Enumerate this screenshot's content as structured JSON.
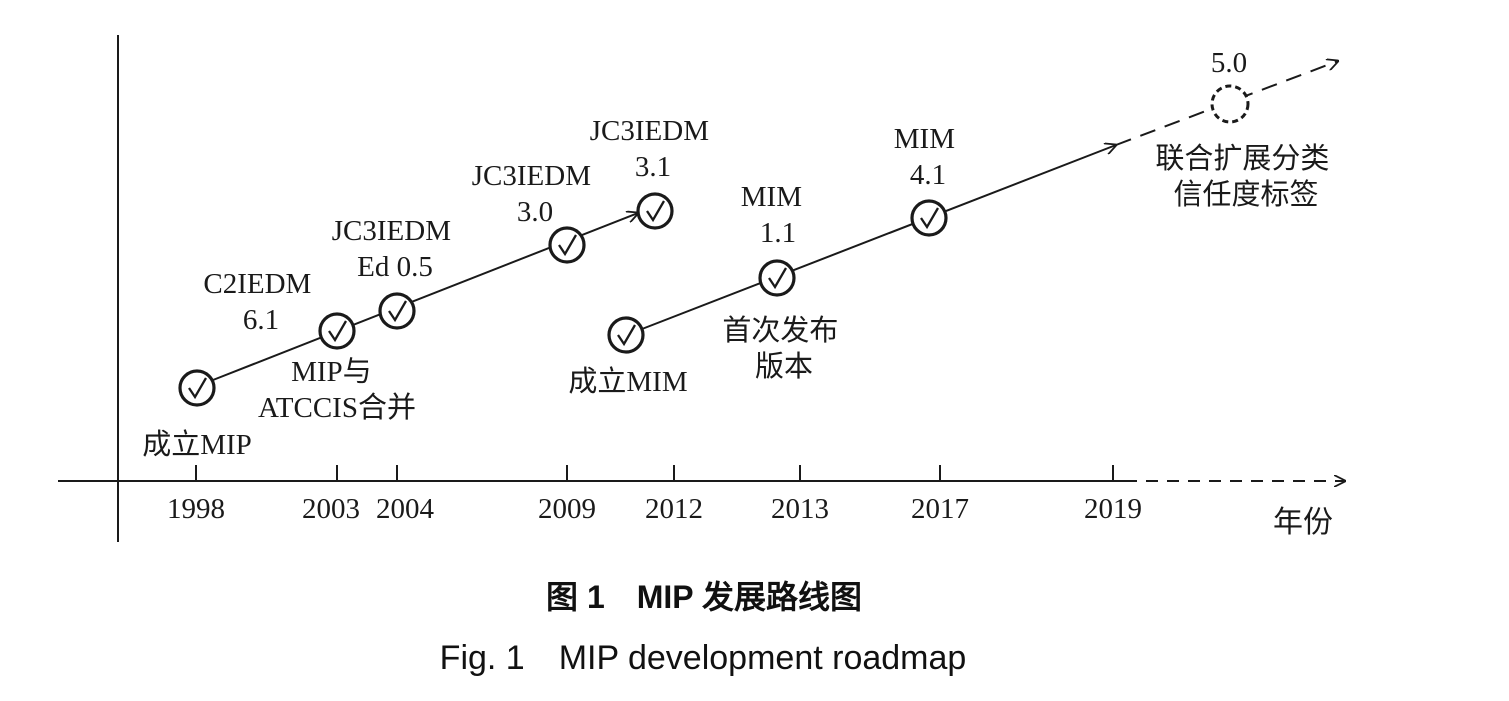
{
  "axis": {
    "years": [
      "1998",
      "2003",
      "2004",
      "2009",
      "2012",
      "2013",
      "2017",
      "2019"
    ],
    "unit_label": "年份"
  },
  "milestones": [
    {
      "key": "mip-founded",
      "lines": [
        "成立MIP"
      ],
      "status": "done"
    },
    {
      "key": "mip-atccis-merge",
      "lines": [
        "MIP与",
        "ATCCIS合并"
      ],
      "status": "done"
    },
    {
      "key": "c2iedm-6-1",
      "lines": [
        "C2IEDM",
        "6.1"
      ],
      "status": "done"
    },
    {
      "key": "jc3iedm-ed-0-5",
      "lines": [
        "JC3IEDM",
        "Ed 0.5"
      ],
      "status": "done"
    },
    {
      "key": "jc3iedm-3-0",
      "lines": [
        "JC3IEDM",
        "3.0"
      ],
      "status": "done"
    },
    {
      "key": "jc3iedm-3-1",
      "lines": [
        "JC3IEDM",
        "3.1"
      ],
      "status": "done"
    },
    {
      "key": "mim-founded",
      "lines": [
        "成立MIM"
      ],
      "status": "done"
    },
    {
      "key": "mim-1-1",
      "lines": [
        "MIM",
        "1.1"
      ],
      "status": "done"
    },
    {
      "key": "mim-first-release",
      "lines": [
        "首次发布",
        "版本"
      ],
      "status": "done"
    },
    {
      "key": "mim-4-1",
      "lines": [
        "MIM",
        "4.1"
      ],
      "status": "done"
    },
    {
      "key": "v5-0",
      "lines": [
        "5.0"
      ],
      "status": "planned"
    },
    {
      "key": "joint-extension",
      "lines": [
        "联合扩展分类",
        "信任度标签"
      ],
      "status": "planned"
    }
  ],
  "caption": {
    "cn": "图 1　MIP 发展路线图",
    "en": "Fig. 1　MIP development roadmap"
  },
  "colors": {
    "ink": "#1a1a1a",
    "background": "#ffffff"
  },
  "icons": {
    "done": "checkmark-circle",
    "planned": "dashed-circle"
  }
}
